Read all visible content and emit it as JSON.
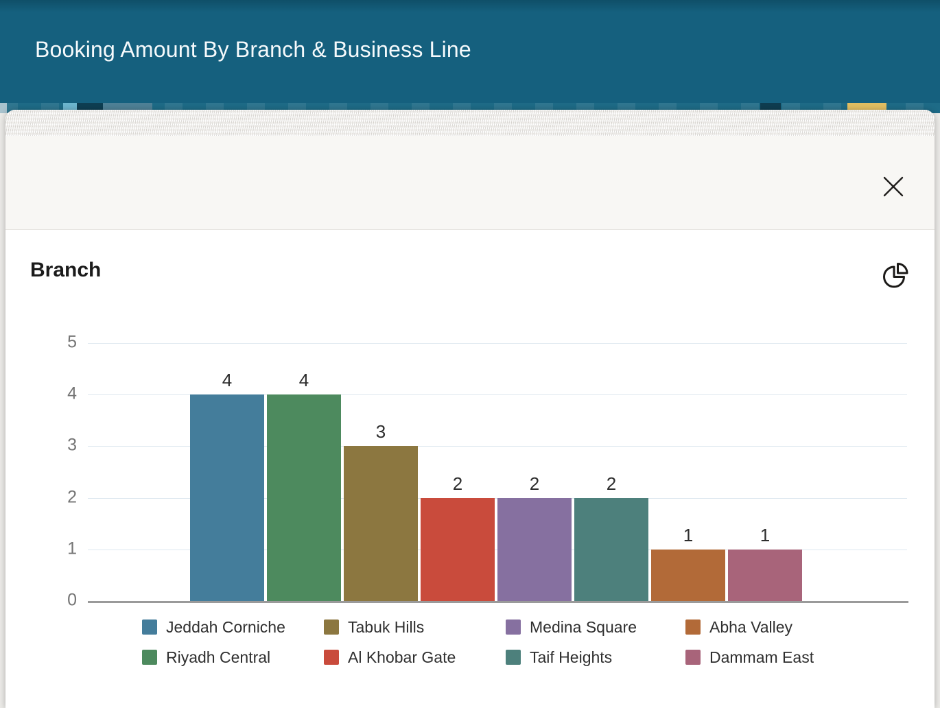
{
  "header": {
    "title": "Booking Amount By Branch & Business Line",
    "background_color": "#15607e"
  },
  "dialog": {
    "close_icon": "x-icon"
  },
  "chart": {
    "title": "Branch",
    "toolbar_icon": "pie-chart-icon"
  },
  "chart_data": {
    "type": "bar",
    "title": "Branch",
    "categories": [
      "Jeddah Corniche",
      "Riyadh Central",
      "Tabuk Hills",
      "Al Khobar Gate",
      "Medina Square",
      "Taif Heights",
      "Abha Valley",
      "Dammam East"
    ],
    "values": [
      4,
      4,
      3,
      2,
      2,
      2,
      1,
      1
    ],
    "colors": [
      "#447d9b",
      "#4d8a5e",
      "#8c7740",
      "#c94b3c",
      "#8670a0",
      "#4d807c",
      "#b26a38",
      "#a8647a"
    ],
    "bar_labels": [
      4,
      4,
      3,
      2,
      2,
      2,
      1,
      1
    ],
    "xlabel": "",
    "ylabel": "",
    "ylim": [
      0,
      5
    ],
    "yticks": [
      0,
      1,
      2,
      3,
      4,
      5
    ],
    "grid": true,
    "legend_position": "bottom",
    "legend_rows": [
      [
        0,
        2,
        4,
        6
      ],
      [
        1,
        3,
        5,
        7
      ]
    ]
  }
}
